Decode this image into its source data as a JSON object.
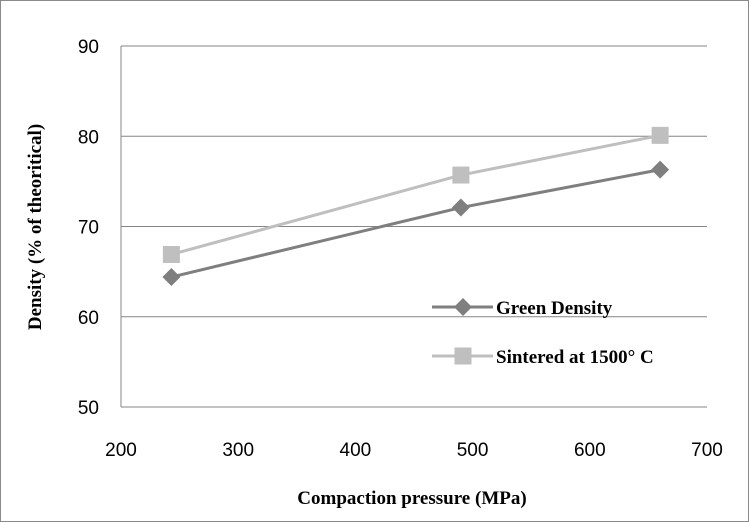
{
  "chart_data": {
    "type": "line",
    "xlabel": "Compaction pressure (MPa)",
    "ylabel": "Density  (% of theoritical)",
    "xlim": [
      200,
      700
    ],
    "ylim": [
      50,
      90
    ],
    "xticks": [
      200,
      300,
      400,
      500,
      600,
      700
    ],
    "yticks": [
      50,
      60,
      70,
      80,
      90
    ],
    "grid": "horizontal",
    "legend_placement": "right",
    "series": [
      {
        "name": "Green Density",
        "marker": "diamond",
        "color": "#7f7f7f",
        "x": [
          243,
          490,
          660
        ],
        "y": [
          64.4,
          72.1,
          76.3
        ]
      },
      {
        "name": "Sintered at 1500° C",
        "marker": "square",
        "color": "#bfbfbf",
        "x": [
          243,
          490,
          660
        ],
        "y": [
          66.9,
          75.7,
          80.1
        ]
      }
    ]
  }
}
